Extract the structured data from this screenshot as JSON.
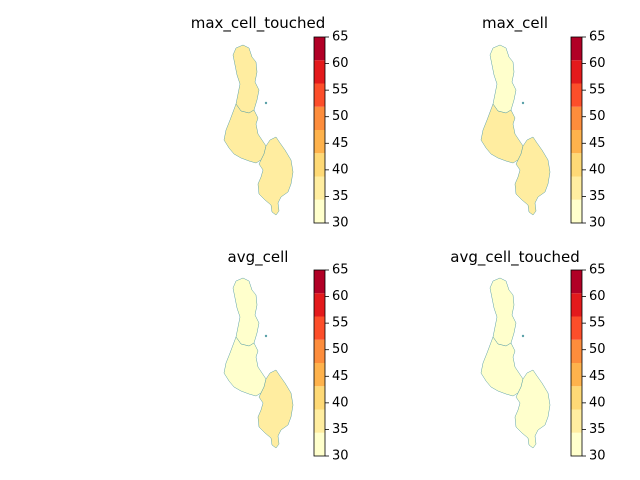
{
  "figure": {
    "colorbar": {
      "boundaries": [
        30,
        35,
        40,
        45,
        50,
        55,
        60,
        65
      ],
      "tick_labels": [
        "30",
        "35",
        "40",
        "45",
        "50",
        "55",
        "60",
        "65"
      ],
      "colors": [
        "#ffffcc",
        "#ffeda0",
        "#fed976",
        "#feb24c",
        "#fd8d3c",
        "#fc4e2a",
        "#e31a1c",
        "#b10026"
      ],
      "colormap": "YlOrRd"
    },
    "region_outline_color": "#5aa0a8",
    "panels": [
      {
        "title": "max_cell_touched",
        "regions": {
          "north": 38,
          "central": 39,
          "south": 39
        }
      },
      {
        "title": "max_cell",
        "regions": {
          "north": 33,
          "central": 39,
          "south": 39
        }
      },
      {
        "title": "avg_cell",
        "regions": {
          "north": 33,
          "central": 33,
          "south": 38
        }
      },
      {
        "title": "avg_cell_touched",
        "regions": {
          "north": 33,
          "central": 33,
          "south": 34
        }
      }
    ]
  }
}
